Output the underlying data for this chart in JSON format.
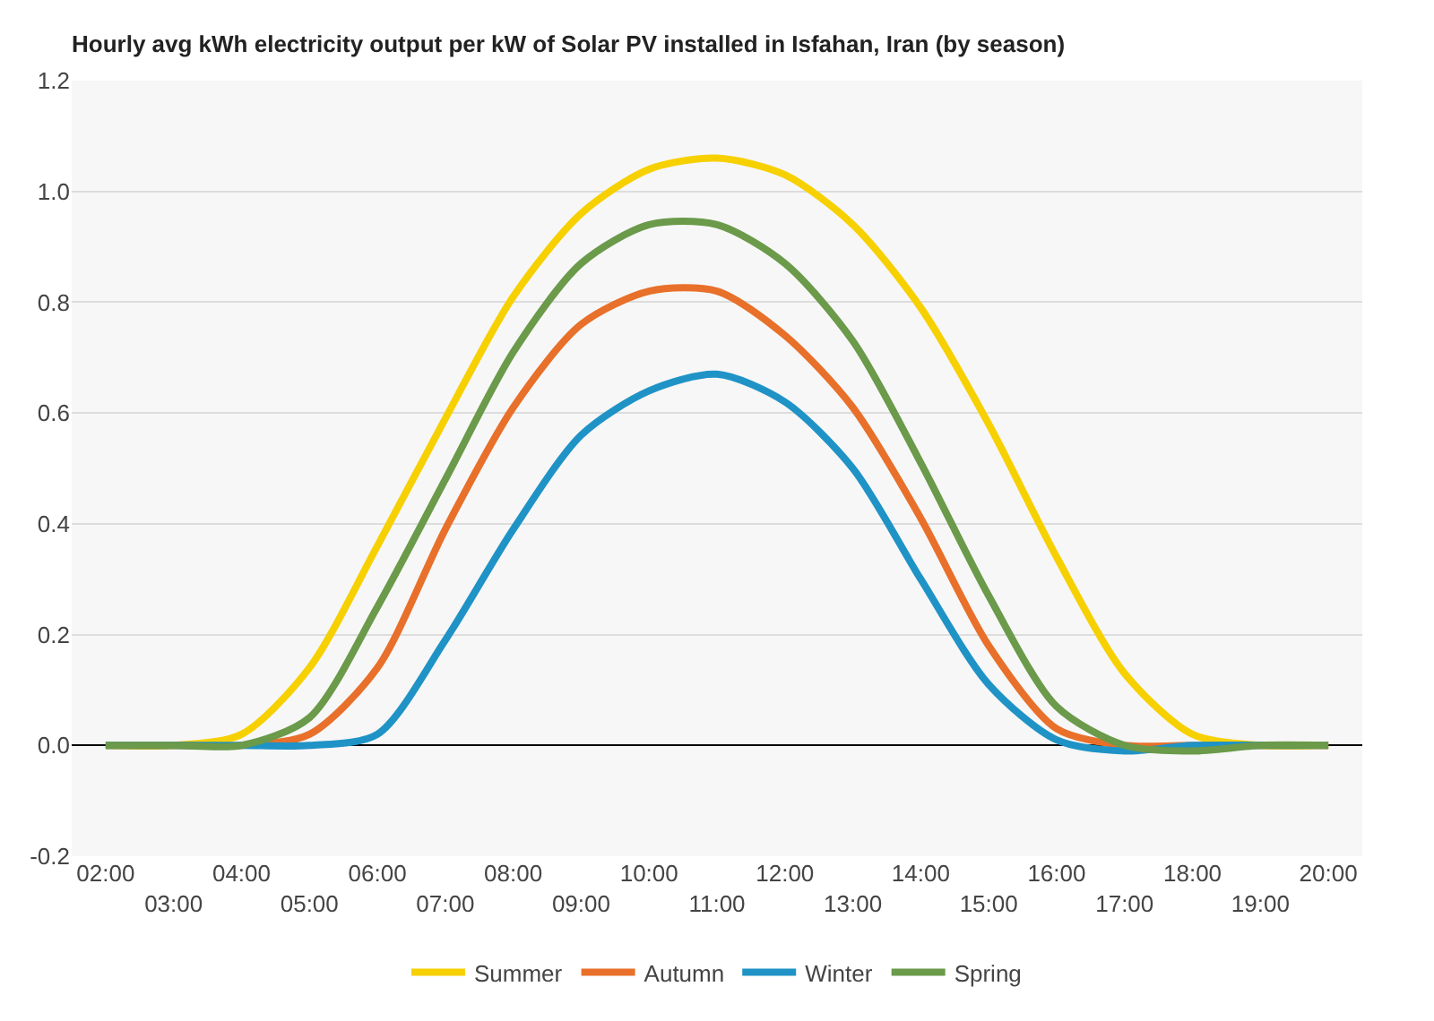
{
  "chart_data": {
    "type": "line",
    "title": "Hourly avg kWh electricity output per kW of Solar PV installed in Isfahan, Iran (by season)",
    "categories": [
      "02:00",
      "03:00",
      "04:00",
      "05:00",
      "06:00",
      "07:00",
      "08:00",
      "09:00",
      "10:00",
      "11:00",
      "12:00",
      "13:00",
      "14:00",
      "15:00",
      "16:00",
      "17:00",
      "18:00",
      "19:00",
      "20:00"
    ],
    "series": [
      {
        "name": "Summer",
        "color": "#f7d000",
        "values": [
          0,
          0,
          0.02,
          0.14,
          0.36,
          0.59,
          0.81,
          0.96,
          1.04,
          1.06,
          1.03,
          0.94,
          0.79,
          0.58,
          0.34,
          0.13,
          0.02,
          0,
          0
        ]
      },
      {
        "name": "Autumn",
        "color": "#e8702a",
        "values": [
          0,
          0,
          0,
          0.02,
          0.14,
          0.39,
          0.61,
          0.76,
          0.82,
          0.82,
          0.74,
          0.61,
          0.41,
          0.18,
          0.03,
          0,
          0,
          0,
          0
        ]
      },
      {
        "name": "Winter",
        "color": "#1f93c6",
        "values": [
          0,
          0,
          0,
          0,
          0.02,
          0.19,
          0.39,
          0.56,
          0.64,
          0.67,
          0.62,
          0.5,
          0.3,
          0.11,
          0.01,
          -0.01,
          0,
          0,
          0
        ]
      },
      {
        "name": "Spring",
        "color": "#6a9a4a",
        "values": [
          0,
          0,
          0,
          0.05,
          0.25,
          0.48,
          0.71,
          0.87,
          0.94,
          0.94,
          0.87,
          0.73,
          0.51,
          0.27,
          0.07,
          0,
          -0.01,
          0,
          0
        ]
      }
    ],
    "ylim": [
      -0.2,
      1.2
    ],
    "yticks": [
      -0.2,
      {
        "value": 0,
        "label": "0.0"
      },
      0.2,
      0.4,
      0.6,
      0.8,
      {
        "value": 1,
        "label": "1.0"
      },
      1.2
    ],
    "grid": "y",
    "legend": "bottom",
    "marker": "none",
    "line_style": "solid"
  }
}
